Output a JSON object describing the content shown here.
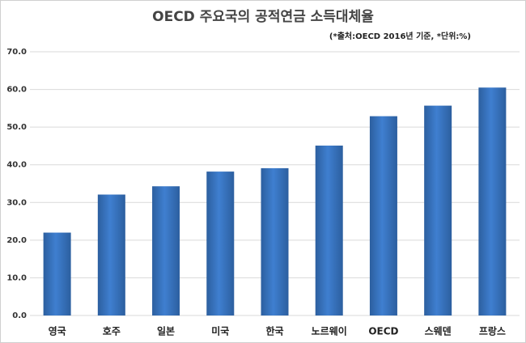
{
  "chart_data": {
    "type": "bar",
    "title": "OECD 주요국의 공적연금 소득대체율",
    "subtitle": "(*출처:OECD 2016년 기준, *단위:%)",
    "categories": [
      "영국",
      "호주",
      "일본",
      "미국",
      "한국",
      "노르웨이",
      "OECD",
      "스웨덴",
      "프랑스"
    ],
    "values": [
      22.0,
      32.1,
      34.3,
      38.2,
      39.1,
      45.1,
      52.9,
      55.7,
      60.5
    ],
    "color": "#3f7fd0",
    "ylim": [
      0,
      70
    ],
    "yticks": [
      {
        "value": 0,
        "label": "0.0"
      },
      {
        "value": 10,
        "label": "10.0"
      },
      {
        "value": 20,
        "label": "20.0"
      },
      {
        "value": 30,
        "label": "30.0"
      },
      {
        "value": 40,
        "label": "40.0"
      },
      {
        "value": 50,
        "label": "50.0"
      },
      {
        "value": 60,
        "label": "60.0"
      },
      {
        "value": 70,
        "label": "70.0"
      }
    ],
    "grid": true
  }
}
